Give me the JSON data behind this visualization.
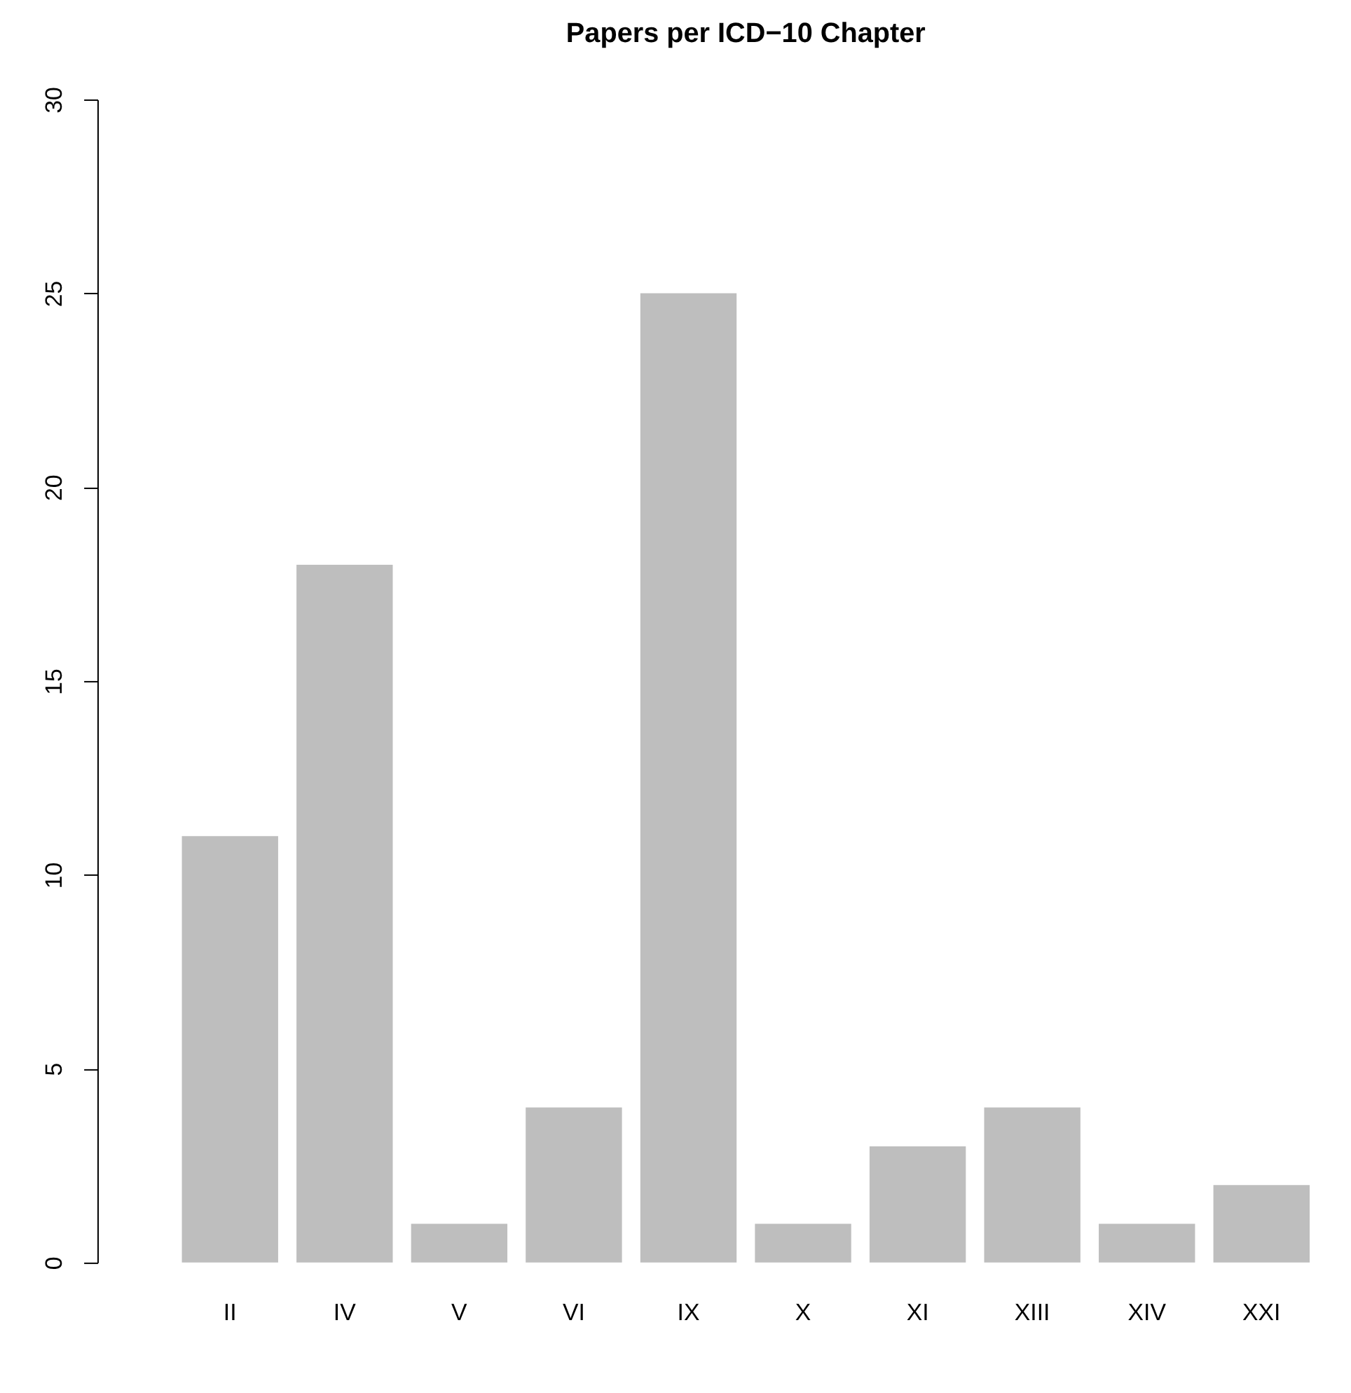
{
  "chart_data": {
    "type": "bar",
    "title": "Papers per ICD−10 Chapter",
    "categories": [
      "II",
      "IV",
      "V",
      "VI",
      "IX",
      "X",
      "XI",
      "XIII",
      "XIV",
      "XXI"
    ],
    "values": [
      11,
      18,
      1,
      4,
      25,
      1,
      3,
      4,
      1,
      2
    ],
    "color": "#bebebe",
    "ylim": [
      0,
      30
    ],
    "yticks": [
      0,
      5,
      10,
      15,
      20,
      25,
      30
    ],
    "grid": false
  }
}
